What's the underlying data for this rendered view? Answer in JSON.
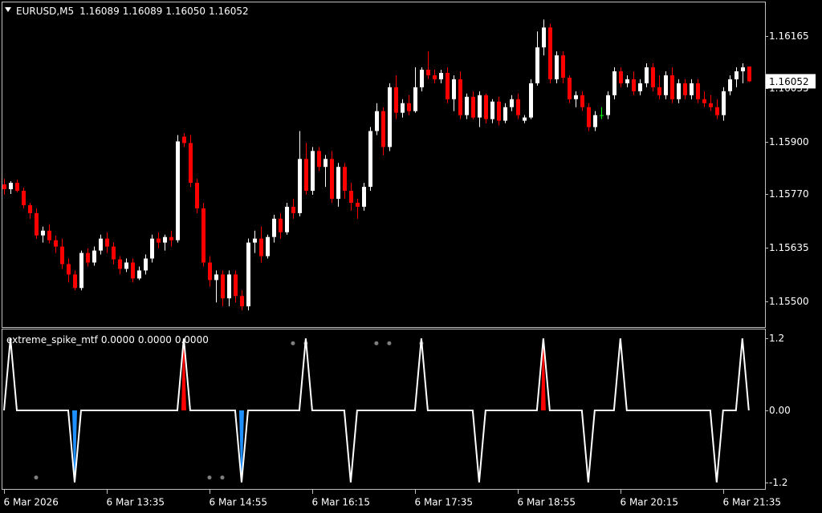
{
  "chart_data": [
    {
      "type": "candlestick",
      "symbol": "EURUSD,M5",
      "value_labels": [
        "1.16089",
        "1.16089",
        "1.16050",
        "1.16052"
      ],
      "colors": {
        "up": "#ffffff",
        "down": "#ff0000",
        "doji": "#00ff00"
      },
      "ylim": [
        1.15435,
        1.1625
      ],
      "yticks": [
        1.16165,
        1.16035,
        {
          "value": 1.159,
          "label": "1.15900"
        },
        {
          "value": 1.1577,
          "label": "1.15770"
        },
        1.15635,
        {
          "value": 1.155,
          "label": "1.15500"
        }
      ],
      "xlim": [
        -0.25,
        118.4
      ],
      "xticks": [
        {
          "value": 0,
          "label": "6 Mar 2026"
        },
        {
          "value": 16,
          "label": "6 Mar 13:35"
        },
        {
          "value": 32,
          "label": "6 Mar 14:55"
        },
        {
          "value": 48,
          "label": "6 Mar 16:15"
        },
        {
          "value": 64,
          "label": "6 Mar 17:35"
        },
        {
          "value": 80,
          "label": "6 Mar 18:55"
        },
        {
          "value": 96,
          "label": "6 Mar 20:15"
        },
        {
          "value": 112,
          "label": "6 Mar 21:35"
        }
      ],
      "ohlc": [
        [
          1.15793,
          1.15807,
          1.15767,
          1.15781
        ],
        [
          1.15781,
          1.15801,
          1.15769,
          1.15797
        ],
        [
          1.15797,
          1.15805,
          1.15773,
          1.15777
        ],
        [
          1.15777,
          1.15785,
          1.15733,
          1.15741
        ],
        [
          1.15741,
          1.15747,
          1.15707,
          1.15721
        ],
        [
          1.15721,
          1.15733,
          1.15657,
          1.15665
        ],
        [
          1.15665,
          1.15687,
          1.15647,
          1.15677
        ],
        [
          1.15677,
          1.15693,
          1.15645,
          1.15653
        ],
        [
          1.15653,
          1.15665,
          1.15621,
          1.15637
        ],
        [
          1.15637,
          1.15657,
          1.15581,
          1.15593
        ],
        [
          1.15593,
          1.15607,
          1.15547,
          1.15567
        ],
        [
          1.15567,
          1.15577,
          1.15527,
          1.15533
        ],
        [
          1.15533,
          1.15627,
          1.15527,
          1.15621
        ],
        [
          1.15621,
          1.15633,
          1.15587,
          1.15597
        ],
        [
          1.15597,
          1.15637,
          1.15589,
          1.15627
        ],
        [
          1.15627,
          1.15667,
          1.15617,
          1.15657
        ],
        [
          1.15657,
          1.15673,
          1.15621,
          1.15637
        ],
        [
          1.15637,
          1.15647,
          1.15593,
          1.15605
        ],
        [
          1.15605,
          1.15613,
          1.15567,
          1.15581
        ],
        [
          1.15581,
          1.15607,
          1.15573,
          1.15597
        ],
        [
          1.15597,
          1.15607,
          1.15547,
          1.15557
        ],
        [
          1.15557,
          1.15587,
          1.15553,
          1.15577
        ],
        [
          1.15577,
          1.15617,
          1.15567,
          1.15607
        ],
        [
          1.15607,
          1.15667,
          1.15597,
          1.15657
        ],
        [
          1.15657,
          1.15673,
          1.15633,
          1.15647
        ],
        [
          1.15647,
          1.15667,
          1.15627,
          1.15661
        ],
        [
          1.15661,
          1.15677,
          1.15637,
          1.15653
        ],
        [
          1.15653,
          1.15917,
          1.15647,
          1.15901
        ],
        [
          1.15913,
          1.15921,
          1.15887,
          1.15897
        ],
        [
          1.15897,
          1.15917,
          1.15787,
          1.15797
        ],
        [
          1.15797,
          1.15807,
          1.15721,
          1.15733
        ],
        [
          1.15733,
          1.15747,
          1.15587,
          1.15597
        ],
        [
          1.15597,
          1.15613,
          1.15537,
          1.15553
        ],
        [
          1.15553,
          1.15577,
          1.15497,
          1.15567
        ],
        [
          1.15567,
          1.15577,
          1.15487,
          1.15507
        ],
        [
          1.15507,
          1.15577,
          1.15487,
          1.15567
        ],
        [
          1.15567,
          1.15577,
          1.15497,
          1.15513
        ],
        [
          1.15513,
          1.15527,
          1.15477,
          1.15487
        ],
        [
          1.15487,
          1.15657,
          1.15477,
          1.15647
        ],
        [
          1.15647,
          1.15677,
          1.15621,
          1.15657
        ],
        [
          1.15657,
          1.15687,
          1.15597,
          1.15613
        ],
        [
          1.15613,
          1.15667,
          1.15607,
          1.15661
        ],
        [
          1.15661,
          1.15717,
          1.15647,
          1.15707
        ],
        [
          1.15707,
          1.15721,
          1.15657,
          1.15673
        ],
        [
          1.15673,
          1.15747,
          1.15667,
          1.15737
        ],
        [
          1.15737,
          1.15757,
          1.15707,
          1.15721
        ],
        [
          1.15721,
          1.15927,
          1.15713,
          1.15857
        ],
        [
          1.15857,
          1.15897,
          1.15767,
          1.15777
        ],
        [
          1.15777,
          1.15887,
          1.15767,
          1.15877
        ],
        [
          1.15877,
          1.15887,
          1.15827,
          1.15837
        ],
        [
          1.15837,
          1.15867,
          1.15787,
          1.15857
        ],
        [
          1.15857,
          1.15877,
          1.15747,
          1.15757
        ],
        [
          1.15757,
          1.15847,
          1.15737,
          1.15837
        ],
        [
          1.15837,
          1.15847,
          1.15757,
          1.15777
        ],
        [
          1.15777,
          1.15797,
          1.15727,
          1.15747
        ],
        [
          1.15747,
          1.15757,
          1.15707,
          1.15737
        ],
        [
          1.15737,
          1.15797,
          1.15727,
          1.15787
        ],
        [
          1.15787,
          1.15937,
          1.15777,
          1.15927
        ],
        [
          1.15927,
          1.15997,
          1.15917,
          1.15977
        ],
        [
          1.15977,
          1.15987,
          1.15867,
          1.15887
        ],
        [
          1.15887,
          1.16047,
          1.15877,
          1.16037
        ],
        [
          1.16037,
          1.16067,
          1.15957,
          1.15973
        ],
        [
          1.15973,
          1.16007,
          1.15961,
          1.15997
        ],
        [
          1.15997,
          1.16017,
          1.15967,
          1.15977
        ],
        [
          1.15977,
          1.16087,
          1.15973,
          1.16037
        ],
        [
          1.16037,
          1.16087,
          1.16027,
          1.16081
        ],
        [
          1.16081,
          1.16127,
          1.16057,
          1.16067
        ],
        [
          1.16067,
          1.16081,
          1.16047,
          1.16057
        ],
        [
          1.16057,
          1.16081,
          1.16047,
          1.16073
        ],
        [
          1.16073,
          1.16087,
          1.15997,
          1.16007
        ],
        [
          1.16007,
          1.16067,
          1.15977,
          1.16057
        ],
        [
          1.16057,
          1.16077,
          1.15957,
          1.15967
        ],
        [
          1.15967,
          1.16021,
          1.15957,
          1.16013
        ],
        [
          1.16013,
          1.16027,
          1.15957,
          1.15961
        ],
        [
          1.15961,
          1.16027,
          1.15937,
          1.16017
        ],
        [
          1.16017,
          1.16021,
          1.15947,
          1.15957
        ],
        [
          1.15957,
          1.16007,
          1.15947,
          1.16001
        ],
        [
          1.16001,
          1.16013,
          1.15941,
          1.15953
        ],
        [
          1.15953,
          1.15997,
          1.15947,
          1.15987
        ],
        [
          1.15987,
          1.16017,
          1.15977,
          1.16007
        ],
        [
          1.16007,
          1.16021,
          1.15957,
          1.15967
        ],
        [
          1.15953,
          1.15967,
          1.15947,
          1.15961
        ],
        [
          1.15961,
          1.16057,
          1.15957,
          1.16047
        ],
        [
          1.16047,
          1.16177,
          1.16041,
          1.16137
        ],
        [
          1.16137,
          1.16207,
          1.16117,
          1.16187
        ],
        [
          1.16187,
          1.16197,
          1.16047,
          1.16057
        ],
        [
          1.16057,
          1.16127,
          1.16047,
          1.16117
        ],
        [
          1.16117,
          1.16127,
          1.16047,
          1.16061
        ],
        [
          1.16061,
          1.16067,
          1.15997,
          1.16007
        ],
        [
          1.16007,
          1.16027,
          1.15987,
          1.16017
        ],
        [
          1.16017,
          1.16027,
          1.15977,
          1.15987
        ],
        [
          1.15987,
          1.15997,
          1.15927,
          1.15937
        ],
        [
          1.15937,
          1.15977,
          1.15927,
          1.15967
        ],
        [
          1.15967,
          1.15987,
          1.15957,
          1.15967
        ],
        [
          1.15967,
          1.16027,
          1.15957,
          1.16017
        ],
        [
          1.16017,
          1.16087,
          1.16007,
          1.16077
        ],
        [
          1.16077,
          1.16087,
          1.16037,
          1.16047
        ],
        [
          1.16047,
          1.16067,
          1.16037,
          1.16057
        ],
        [
          1.16057,
          1.16077,
          1.16017,
          1.16027
        ],
        [
          1.16027,
          1.16057,
          1.16017,
          1.16047
        ],
        [
          1.16047,
          1.16097,
          1.16037,
          1.16087
        ],
        [
          1.16087,
          1.16097,
          1.16027,
          1.16037
        ],
        [
          1.16037,
          1.16067,
          1.16007,
          1.16017
        ],
        [
          1.16017,
          1.16077,
          1.16007,
          1.16067
        ],
        [
          1.16067,
          1.16087,
          1.15997,
          1.16007
        ],
        [
          1.16007,
          1.16057,
          1.15997,
          1.16047
        ],
        [
          1.16047,
          1.16057,
          1.16007,
          1.16017
        ],
        [
          1.16017,
          1.16057,
          1.16007,
          1.16047
        ],
        [
          1.16047,
          1.16057,
          1.15997,
          1.16007
        ],
        [
          1.16007,
          1.16027,
          1.15987,
          1.15997
        ],
        [
          1.15997,
          1.16017,
          1.15977,
          1.15987
        ],
        [
          1.15987,
          1.16007,
          1.15957,
          1.15967
        ],
        [
          1.15967,
          1.16037,
          1.15953,
          1.16027
        ],
        [
          1.16027,
          1.16067,
          1.16017,
          1.16057
        ],
        [
          1.16057,
          1.16087,
          1.16037,
          1.16077
        ],
        [
          1.16077,
          1.16097,
          1.16047,
          1.16087
        ],
        [
          1.16089,
          1.16089,
          1.1605,
          1.16052
        ]
      ]
    },
    {
      "type": "spike",
      "name": "extreme_spike_mtf",
      "readout": [
        "0.0000",
        "0.0000",
        "0.0000"
      ],
      "ylim": [
        -1.31,
        1.35
      ],
      "yticks": [
        1.2,
        {
          "value": 0,
          "label": "0.00"
        },
        -1.2
      ],
      "xlim": [
        -0.25,
        118.4
      ],
      "series": [
        {
          "style": "line",
          "color": "#ffffff",
          "values": [
            0,
            1.2,
            0,
            0,
            0,
            0,
            0,
            0,
            0,
            0,
            0,
            -1.2,
            0,
            0,
            0,
            0,
            0,
            0,
            0,
            0,
            0,
            0,
            0,
            0,
            0,
            0,
            0,
            0,
            1.2,
            0,
            0,
            0,
            0,
            0,
            0,
            0,
            0,
            -1.2,
            0,
            0,
            0,
            0,
            0,
            0,
            0,
            0,
            0,
            1.2,
            0,
            0,
            0,
            0,
            0,
            0,
            -1.2,
            0,
            0,
            0,
            0,
            0,
            0,
            0,
            0,
            0,
            0,
            1.2,
            0,
            0,
            0,
            0,
            0,
            0,
            0,
            0,
            -1.2,
            0,
            0,
            0,
            0,
            0,
            0,
            0,
            0,
            0,
            1.2,
            0,
            0,
            0,
            0,
            0,
            0,
            -1.2,
            0,
            0,
            0,
            0,
            1.2,
            0,
            0,
            0,
            0,
            0,
            0,
            0,
            0,
            0,
            0,
            0,
            0,
            0,
            0,
            -1.2,
            0,
            0,
            0,
            1.2,
            0
          ]
        },
        {
          "style": "histogram",
          "color": "#ff0000",
          "x": [
            28,
            84
          ],
          "values": [
            1.2,
            1.2
          ]
        },
        {
          "style": "histogram",
          "color": "#1e90ff",
          "x": [
            11,
            37
          ],
          "values": [
            -1.2,
            -1.2
          ]
        },
        {
          "style": "dots",
          "color": "#808080",
          "x": [
            45,
            47,
            58,
            60,
            65,
            5,
            32,
            34
          ],
          "values": [
            1.12,
            1.12,
            1.12,
            1.12,
            1.12,
            -1.12,
            -1.12,
            -1.12
          ]
        }
      ]
    }
  ]
}
